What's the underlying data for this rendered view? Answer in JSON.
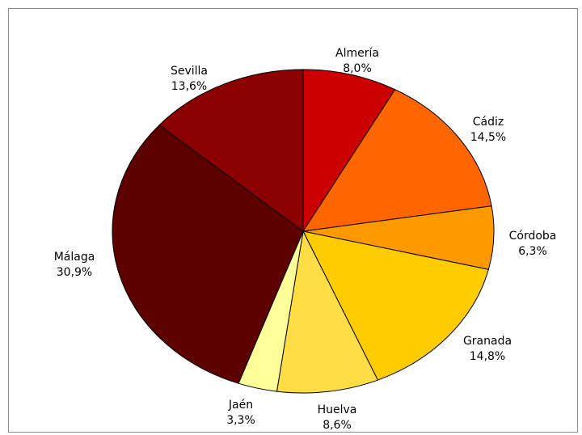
{
  "chart_data": {
    "type": "pie",
    "title": "",
    "start_angle": "top, clockwise",
    "slices": [
      {
        "label": "Almería",
        "value": 8.0,
        "value_text": "8,0%",
        "color": "#cc0000"
      },
      {
        "label": "Cádiz",
        "value": 14.5,
        "value_text": "14,5%",
        "color": "#ff6600"
      },
      {
        "label": "Córdoba",
        "value": 6.3,
        "value_text": "6,3%",
        "color": "#ff9900"
      },
      {
        "label": "Granada",
        "value": 14.8,
        "value_text": "14,8%",
        "color": "#ffcc00"
      },
      {
        "label": "Huelva",
        "value": 8.6,
        "value_text": "8,6%",
        "color": "#ffdd44"
      },
      {
        "label": "Jaén",
        "value": 3.3,
        "value_text": "3,3%",
        "color": "#ffff99"
      },
      {
        "label": "Málaga",
        "value": 30.9,
        "value_text": "30,9%",
        "color": "#5c0000"
      },
      {
        "label": "Sevilla",
        "value": 13.6,
        "value_text": "13,6%",
        "color": "#8b0000"
      }
    ]
  }
}
